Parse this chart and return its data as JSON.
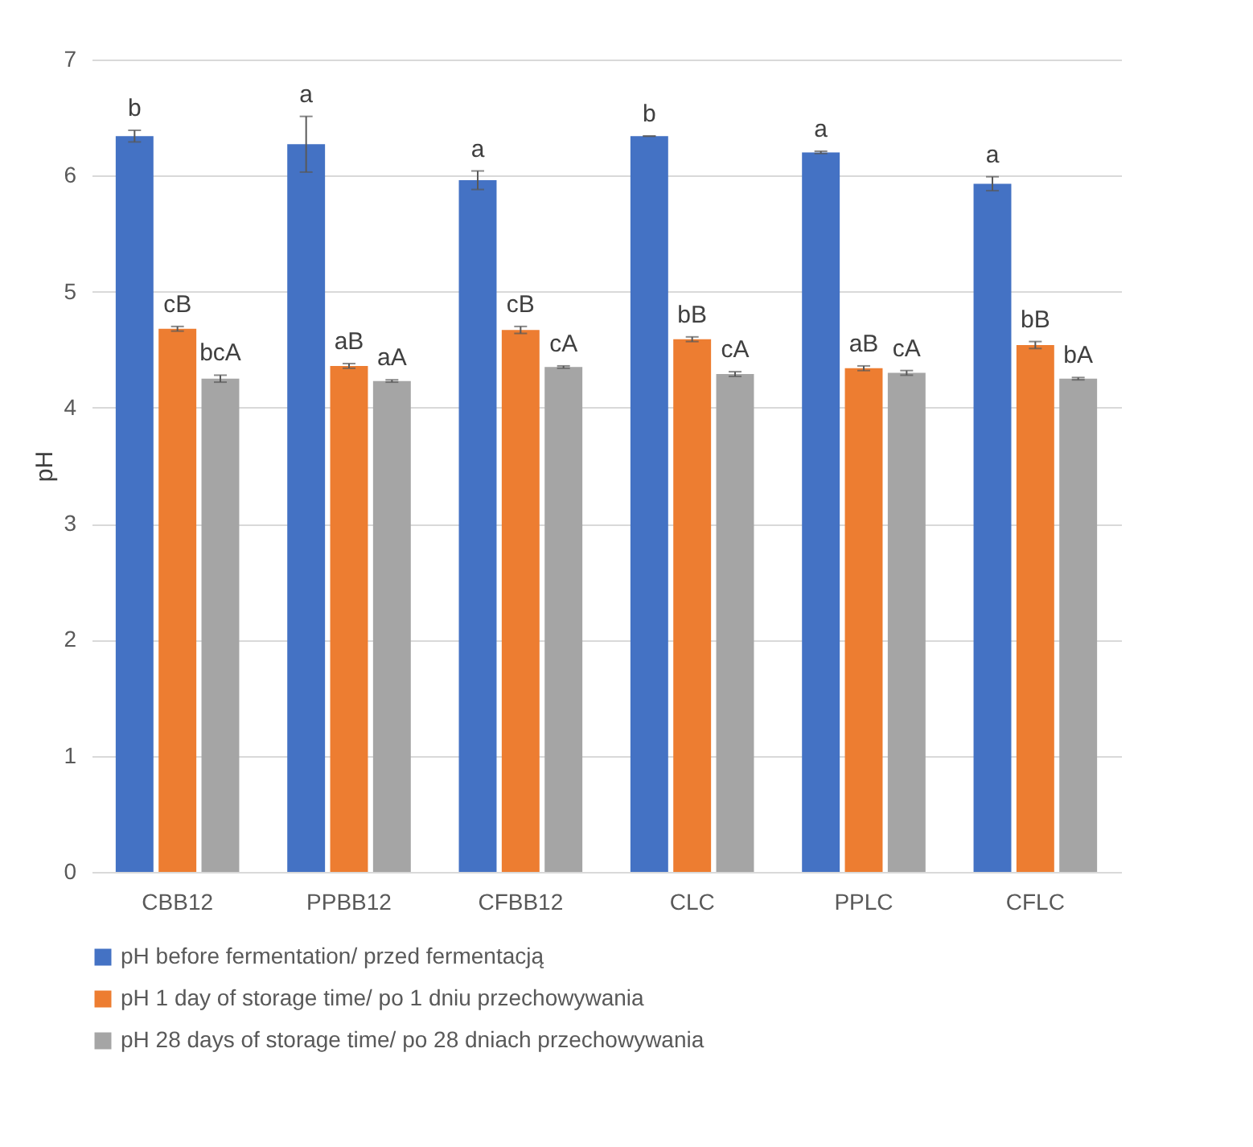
{
  "chart_data": {
    "type": "bar",
    "ylabel": "pH",
    "categories": [
      "CBB12",
      "PPBB12",
      "CFBB12",
      "CLC",
      "PPLC",
      "CFLC"
    ],
    "series": [
      {
        "name": "pH before fermentation/ przed fermentacją",
        "color": "#4472c4",
        "values": [
          6.34,
          6.27,
          5.96,
          6.34,
          6.2,
          5.93
        ],
        "errors": [
          0.05,
          0.24,
          0.08,
          0,
          0.01,
          0.06
        ],
        "value_labels": [
          "b",
          "a",
          "a",
          "b",
          "a",
          "a"
        ]
      },
      {
        "name": "pH 1 day of storage time/ po 1 dniu przechowywania",
        "color": "#ed7d31",
        "values": [
          4.68,
          4.36,
          4.67,
          4.59,
          4.34,
          4.54
        ],
        "errors": [
          0.02,
          0.02,
          0.03,
          0.02,
          0.02,
          0.03
        ],
        "value_labels": [
          "cB",
          "aB",
          "cB",
          "bB",
          "aB",
          "bB"
        ]
      },
      {
        "name": "pH 28 days of storage time/ po 28 dniach przechowywania",
        "color": "#a5a5a5",
        "values": [
          4.25,
          4.23,
          4.35,
          4.29,
          4.3,
          4.25
        ],
        "errors": [
          0.03,
          0.01,
          0.01,
          0.02,
          0.02,
          0.01
        ],
        "value_labels": [
          "bcA",
          "aA",
          "cA",
          "cA",
          "cA",
          "bA"
        ]
      }
    ],
    "ylim": [
      0,
      7
    ],
    "yticks": [
      0,
      1,
      2,
      3,
      4,
      5,
      6,
      7
    ],
    "grid": "y",
    "legend": "bottom"
  }
}
